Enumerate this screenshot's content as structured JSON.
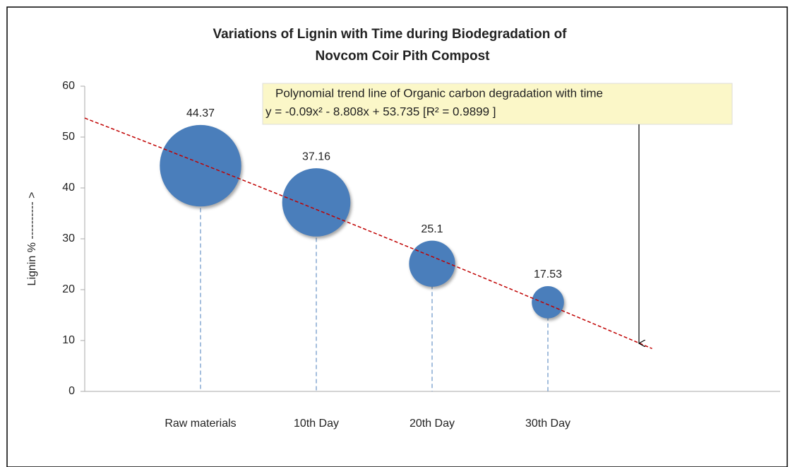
{
  "chart_data": {
    "type": "bubble",
    "title": [
      "Variations of  Lignin with Time during Biodegradation of",
      "Novcom Coir Pith Compost"
    ],
    "ylabel": "Lignin % ---------- >",
    "categories": [
      "Raw materials",
      "10th Day",
      "20th Day",
      "30th Day"
    ],
    "values": [
      44.37,
      37.16,
      25.1,
      17.53
    ],
    "sizes": [
      44.37,
      37.16,
      25.1,
      17.53
    ],
    "color": "#4a7ebb",
    "ylim": [
      0,
      60
    ],
    "yticks": [
      0,
      10,
      20,
      30,
      40,
      50,
      60
    ],
    "annotation": [
      "Polynomial trend line of Organic carbon degradation with time",
      "y = -0.09x² - 8.808x + 53.735 [R² = 0.9899 ]"
    ],
    "trendline": {
      "coefficients": [
        -0.09,
        -8.808,
        53.735
      ],
      "color": "#c00000"
    }
  }
}
